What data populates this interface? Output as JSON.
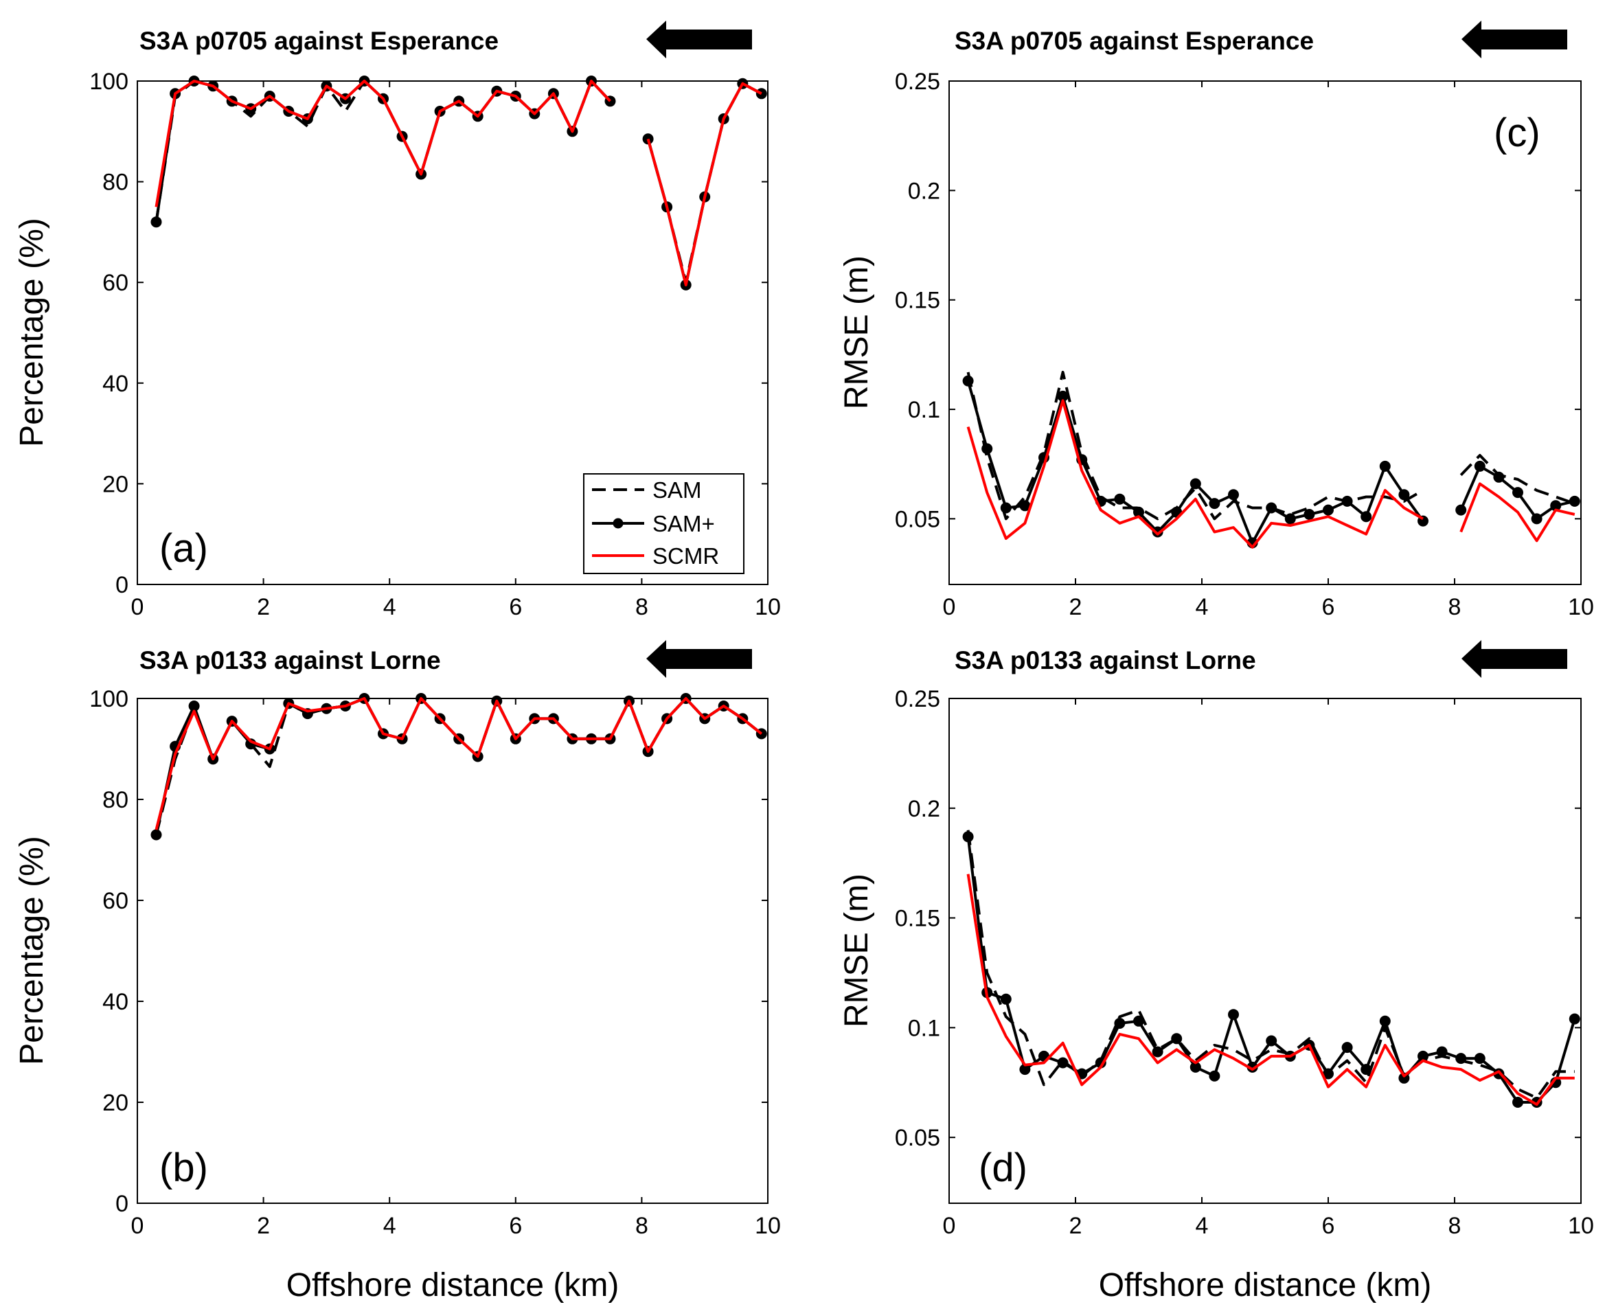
{
  "figure": {
    "shared_xlabel": "Offshore distance (km)"
  },
  "colors": {
    "sam": "#000000",
    "sam_plus": "#000000",
    "scmr": "#ff0000",
    "arrow": "#000000"
  },
  "chart_data": [
    {
      "id": "a",
      "type": "line",
      "title": "S3A p0705 against Esperance",
      "panel_label": "(a)",
      "xlabel": "Offshore distance (km)",
      "ylabel": "Percentage (%)",
      "xlim": [
        0,
        10
      ],
      "ylim": [
        0,
        100
      ],
      "xticks": [
        0,
        2,
        4,
        6,
        8,
        10
      ],
      "yticks": [
        0,
        20,
        40,
        60,
        80,
        100
      ],
      "ytick_labels": [
        "0",
        "20",
        "40",
        "60",
        "80",
        "100"
      ],
      "arrow": "points left (toward coast)",
      "legend": {
        "entries": [
          "SAM",
          "SAM+",
          "SCMR"
        ],
        "position": "lower-right"
      },
      "series": [
        {
          "name": "SAM",
          "style": "dashed",
          "color": "#000000",
          "x": [
            0.3,
            0.6,
            0.9,
            1.2,
            1.5,
            1.8,
            2.1,
            2.4,
            2.7,
            3.0,
            3.3,
            3.6,
            3.9,
            4.2,
            4.5,
            4.8,
            5.1,
            5.4,
            5.7,
            6.0,
            6.3,
            6.6,
            6.9,
            7.2,
            7.5,
            null,
            8.1,
            8.4,
            8.7,
            9.0,
            9.3,
            9.6,
            9.9
          ],
          "values": [
            72,
            97,
            100,
            99,
            96,
            93,
            97,
            94,
            91,
            99,
            94,
            100,
            96.5,
            89,
            81.5,
            94,
            96,
            93,
            98,
            97,
            93.5,
            97.5,
            90,
            100,
            96,
            null,
            88.5,
            75,
            60,
            77,
            92.5,
            99.5,
            97.5
          ]
        },
        {
          "name": "SAM+",
          "style": "solid-markers",
          "color": "#000000",
          "x": [
            0.3,
            0.6,
            0.9,
            1.2,
            1.5,
            1.8,
            2.1,
            2.4,
            2.7,
            3.0,
            3.3,
            3.6,
            3.9,
            4.2,
            4.5,
            4.8,
            5.1,
            5.4,
            5.7,
            6.0,
            6.3,
            6.6,
            6.9,
            7.2,
            7.5,
            null,
            8.1,
            8.4,
            8.7,
            9.0,
            9.3,
            9.6,
            9.9
          ],
          "values": [
            72,
            97.5,
            100,
            99,
            96,
            94.5,
            97,
            94,
            92.5,
            99,
            96.5,
            100,
            96.5,
            89,
            81.5,
            94,
            96,
            93,
            98,
            97,
            93.5,
            97.5,
            90,
            100,
            96,
            null,
            88.5,
            75,
            59.5,
            77,
            92.5,
            99.5,
            97.5
          ]
        },
        {
          "name": "SCMR",
          "style": "solid",
          "color": "#ff0000",
          "x": [
            0.3,
            0.6,
            0.9,
            1.2,
            1.5,
            1.8,
            2.1,
            2.4,
            2.7,
            3.0,
            3.3,
            3.6,
            3.9,
            4.2,
            4.5,
            4.8,
            5.1,
            5.4,
            5.7,
            6.0,
            6.3,
            6.6,
            6.9,
            7.2,
            7.5,
            null,
            8.1,
            8.4,
            8.7,
            9.0,
            9.3,
            9.6,
            9.9
          ],
          "values": [
            75,
            97.5,
            100,
            99,
            96,
            94.5,
            97,
            94,
            92.5,
            99,
            96.5,
            100,
            96.5,
            89,
            81.5,
            94,
            96,
            93,
            98,
            97,
            93.5,
            97.5,
            90,
            100,
            96,
            null,
            88.5,
            75,
            59.5,
            77,
            92.5,
            99.5,
            97.5
          ]
        }
      ]
    },
    {
      "id": "b",
      "type": "line",
      "title": "S3A p0133 against Lorne",
      "panel_label": "(b)",
      "xlabel": "Offshore distance (km)",
      "ylabel": "Percentage (%)",
      "xlim": [
        0,
        10
      ],
      "ylim": [
        0,
        100
      ],
      "xticks": [
        0,
        2,
        4,
        6,
        8,
        10
      ],
      "yticks": [
        0,
        20,
        40,
        60,
        80,
        100
      ],
      "ytick_labels": [
        "0",
        "20",
        "40",
        "60",
        "80",
        "100"
      ],
      "arrow": "points left (toward coast)",
      "series": [
        {
          "name": "SAM",
          "style": "dashed",
          "color": "#000000",
          "x": [
            0.3,
            0.6,
            0.9,
            1.2,
            1.5,
            1.8,
            2.1,
            2.4,
            2.7,
            3.0,
            3.3,
            3.6,
            3.9,
            4.2,
            4.5,
            4.8,
            5.1,
            5.4,
            5.7,
            6.0,
            6.3,
            6.6,
            6.9,
            7.2,
            7.5,
            7.8,
            8.1,
            8.4,
            8.7,
            9.0,
            9.3,
            9.6,
            9.9
          ],
          "values": [
            73,
            88,
            98,
            88,
            95.5,
            91,
            86.5,
            99,
            97,
            98,
            98.5,
            100,
            93,
            92,
            100,
            96,
            92,
            88.5,
            99.5,
            92,
            96,
            96,
            92,
            92,
            92,
            99.5,
            89.5,
            96,
            100,
            96,
            98.5,
            96,
            93
          ]
        },
        {
          "name": "SAM+",
          "style": "solid-markers",
          "color": "#000000",
          "x": [
            0.3,
            0.6,
            0.9,
            1.2,
            1.5,
            1.8,
            2.1,
            2.4,
            2.7,
            3.0,
            3.3,
            3.6,
            3.9,
            4.2,
            4.5,
            4.8,
            5.1,
            5.4,
            5.7,
            6.0,
            6.3,
            6.6,
            6.9,
            7.2,
            7.5,
            7.8,
            8.1,
            8.4,
            8.7,
            9.0,
            9.3,
            9.6,
            9.9
          ],
          "values": [
            73,
            90.5,
            98.5,
            88,
            95.5,
            91,
            90,
            99,
            97,
            98,
            98.5,
            100,
            93,
            92,
            100,
            96,
            92,
            88.5,
            99.5,
            92,
            96,
            96,
            92,
            92,
            92,
            99.5,
            89.5,
            96,
            100,
            96,
            98.5,
            96,
            93
          ]
        },
        {
          "name": "SCMR",
          "style": "solid",
          "color": "#ff0000",
          "x": [
            0.3,
            0.6,
            0.9,
            1.2,
            1.5,
            1.8,
            2.1,
            2.4,
            2.7,
            3.0,
            3.3,
            3.6,
            3.9,
            4.2,
            4.5,
            4.8,
            5.1,
            5.4,
            5.7,
            6.0,
            6.3,
            6.6,
            6.9,
            7.2,
            7.5,
            7.8,
            8.1,
            8.4,
            8.7,
            9.0,
            9.3,
            9.6,
            9.9
          ],
          "values": [
            74,
            89,
            97.5,
            88,
            95.5,
            91.5,
            90,
            99,
            97.5,
            98,
            98.5,
            100,
            93,
            92,
            100,
            96,
            92,
            88.5,
            99.5,
            92,
            96,
            96,
            92,
            92,
            92,
            99.5,
            89.5,
            96,
            100,
            96,
            98.5,
            96,
            93
          ]
        }
      ]
    },
    {
      "id": "c",
      "type": "line",
      "title": "S3A p0705 against Esperance",
      "panel_label": "(c)",
      "xlabel": "Offshore distance (km)",
      "ylabel": "RMSE (m)",
      "xlim": [
        0,
        10
      ],
      "ylim": [
        0.02,
        0.25
      ],
      "xticks": [
        0,
        2,
        4,
        6,
        8,
        10
      ],
      "yticks": [
        0.05,
        0.1,
        0.15,
        0.2,
        0.25
      ],
      "ytick_labels": [
        "0.05",
        "0.1",
        "0.15",
        "0.2",
        "0.25"
      ],
      "arrow": "points left (toward coast)",
      "series": [
        {
          "name": "SAM",
          "style": "dashed",
          "color": "#000000",
          "x": [
            0.3,
            0.6,
            0.9,
            1.2,
            1.5,
            1.8,
            2.1,
            2.4,
            2.7,
            3.0,
            3.3,
            3.6,
            3.9,
            4.2,
            4.5,
            4.8,
            5.1,
            5.4,
            5.7,
            6.0,
            6.3,
            6.6,
            6.9,
            7.2,
            7.5,
            null,
            8.1,
            8.4,
            8.7,
            9.0,
            9.3,
            9.6,
            9.9
          ],
          "values": [
            0.117,
            0.078,
            0.05,
            0.06,
            0.08,
            0.117,
            0.08,
            0.06,
            0.055,
            0.055,
            0.05,
            0.055,
            0.064,
            0.05,
            0.058,
            0.055,
            0.055,
            0.052,
            0.055,
            0.06,
            0.058,
            0.06,
            0.06,
            0.058,
            0.063,
            null,
            0.07,
            0.079,
            0.07,
            0.068,
            0.063,
            0.06,
            0.057
          ]
        },
        {
          "name": "SAM+",
          "style": "solid-markers",
          "color": "#000000",
          "x": [
            0.3,
            0.6,
            0.9,
            1.2,
            1.5,
            1.8,
            2.1,
            2.4,
            2.7,
            3.0,
            3.3,
            3.6,
            3.9,
            4.2,
            4.5,
            4.8,
            5.1,
            5.4,
            5.7,
            6.0,
            6.3,
            6.6,
            6.9,
            7.2,
            7.5,
            null,
            8.1,
            8.4,
            8.7,
            9.0,
            9.3,
            9.6,
            9.9
          ],
          "values": [
            0.113,
            0.082,
            0.055,
            0.056,
            0.078,
            0.106,
            0.077,
            0.058,
            0.059,
            0.053,
            0.044,
            0.053,
            0.066,
            0.057,
            0.061,
            0.039,
            0.055,
            0.05,
            0.052,
            0.054,
            0.058,
            0.051,
            0.074,
            0.061,
            0.049,
            null,
            0.054,
            0.074,
            0.069,
            0.062,
            0.05,
            0.056,
            0.058
          ]
        },
        {
          "name": "SCMR",
          "style": "solid",
          "color": "#ff0000",
          "x": [
            0.3,
            0.6,
            0.9,
            1.2,
            1.5,
            1.8,
            2.1,
            2.4,
            2.7,
            3.0,
            3.3,
            3.6,
            3.9,
            4.2,
            4.5,
            4.8,
            5.1,
            5.4,
            5.7,
            6.0,
            6.3,
            6.6,
            6.9,
            7.2,
            7.5,
            null,
            8.1,
            8.4,
            8.7,
            9.0,
            9.3,
            9.6,
            9.9
          ],
          "values": [
            0.092,
            0.062,
            0.041,
            0.048,
            0.074,
            0.104,
            0.072,
            0.054,
            0.048,
            0.051,
            0.043,
            0.05,
            0.059,
            0.044,
            0.046,
            0.037,
            0.048,
            0.047,
            0.049,
            0.051,
            0.047,
            0.043,
            0.063,
            0.055,
            0.05,
            null,
            0.044,
            0.066,
            0.06,
            0.053,
            0.04,
            0.054,
            0.052
          ]
        }
      ]
    },
    {
      "id": "d",
      "type": "line",
      "title": "S3A p0133 against Lorne",
      "panel_label": "(d)",
      "xlabel": "Offshore distance (km)",
      "ylabel": "RMSE (m)",
      "xlim": [
        0,
        10
      ],
      "ylim": [
        0.02,
        0.25
      ],
      "xticks": [
        0,
        2,
        4,
        6,
        8,
        10
      ],
      "yticks": [
        0.05,
        0.1,
        0.15,
        0.2,
        0.25
      ],
      "ytick_labels": [
        "0.05",
        "0.1",
        "0.15",
        "0.2",
        "0.25"
      ],
      "arrow": "points left (toward coast)",
      "series": [
        {
          "name": "SAM",
          "style": "dashed",
          "color": "#000000",
          "x": [
            0.3,
            0.6,
            0.9,
            1.2,
            1.5,
            1.8,
            2.1,
            2.4,
            2.7,
            3.0,
            3.3,
            3.6,
            3.9,
            4.2,
            4.5,
            4.8,
            5.1,
            5.4,
            5.7,
            6.0,
            6.3,
            6.6,
            6.9,
            7.2,
            7.5,
            7.8,
            8.1,
            8.4,
            8.7,
            9.0,
            9.3,
            9.6,
            9.9
          ],
          "values": [
            0.19,
            0.125,
            0.105,
            0.097,
            0.074,
            0.085,
            0.078,
            0.085,
            0.105,
            0.108,
            0.09,
            0.095,
            0.085,
            0.092,
            0.09,
            0.085,
            0.09,
            0.088,
            0.095,
            0.078,
            0.085,
            0.075,
            0.1,
            0.078,
            0.085,
            0.087,
            0.085,
            0.083,
            0.08,
            0.072,
            0.068,
            0.08,
            0.08
          ]
        },
        {
          "name": "SAM+",
          "style": "solid-markers",
          "color": "#000000",
          "x": [
            0.3,
            0.6,
            0.9,
            1.2,
            1.5,
            1.8,
            2.1,
            2.4,
            2.7,
            3.0,
            3.3,
            3.6,
            3.9,
            4.2,
            4.5,
            4.8,
            5.1,
            5.4,
            5.7,
            6.0,
            6.3,
            6.6,
            6.9,
            7.2,
            7.5,
            7.8,
            8.1,
            8.4,
            8.7,
            9.0,
            9.3,
            9.6,
            9.9
          ],
          "values": [
            0.187,
            0.116,
            0.113,
            0.081,
            0.087,
            0.084,
            0.079,
            0.084,
            0.102,
            0.103,
            0.089,
            0.095,
            0.082,
            0.078,
            0.106,
            0.082,
            0.094,
            0.087,
            0.092,
            0.079,
            0.091,
            0.081,
            0.103,
            0.077,
            0.087,
            0.089,
            0.086,
            0.086,
            0.079,
            0.066,
            0.066,
            0.075,
            0.104
          ]
        },
        {
          "name": "SCMR",
          "style": "solid",
          "color": "#ff0000",
          "x": [
            0.3,
            0.6,
            0.9,
            1.2,
            1.5,
            1.8,
            2.1,
            2.4,
            2.7,
            3.0,
            3.3,
            3.6,
            3.9,
            4.2,
            4.5,
            4.8,
            5.1,
            5.4,
            5.7,
            6.0,
            6.3,
            6.6,
            6.9,
            7.2,
            7.5,
            7.8,
            8.1,
            8.4,
            8.7,
            9.0,
            9.3,
            9.6,
            9.9
          ],
          "values": [
            0.17,
            0.114,
            0.096,
            0.083,
            0.084,
            0.093,
            0.074,
            0.082,
            0.097,
            0.095,
            0.084,
            0.09,
            0.084,
            0.09,
            0.086,
            0.081,
            0.087,
            0.087,
            0.092,
            0.073,
            0.081,
            0.073,
            0.092,
            0.078,
            0.085,
            0.082,
            0.081,
            0.076,
            0.08,
            0.07,
            0.065,
            0.077,
            0.077
          ]
        }
      ]
    }
  ]
}
